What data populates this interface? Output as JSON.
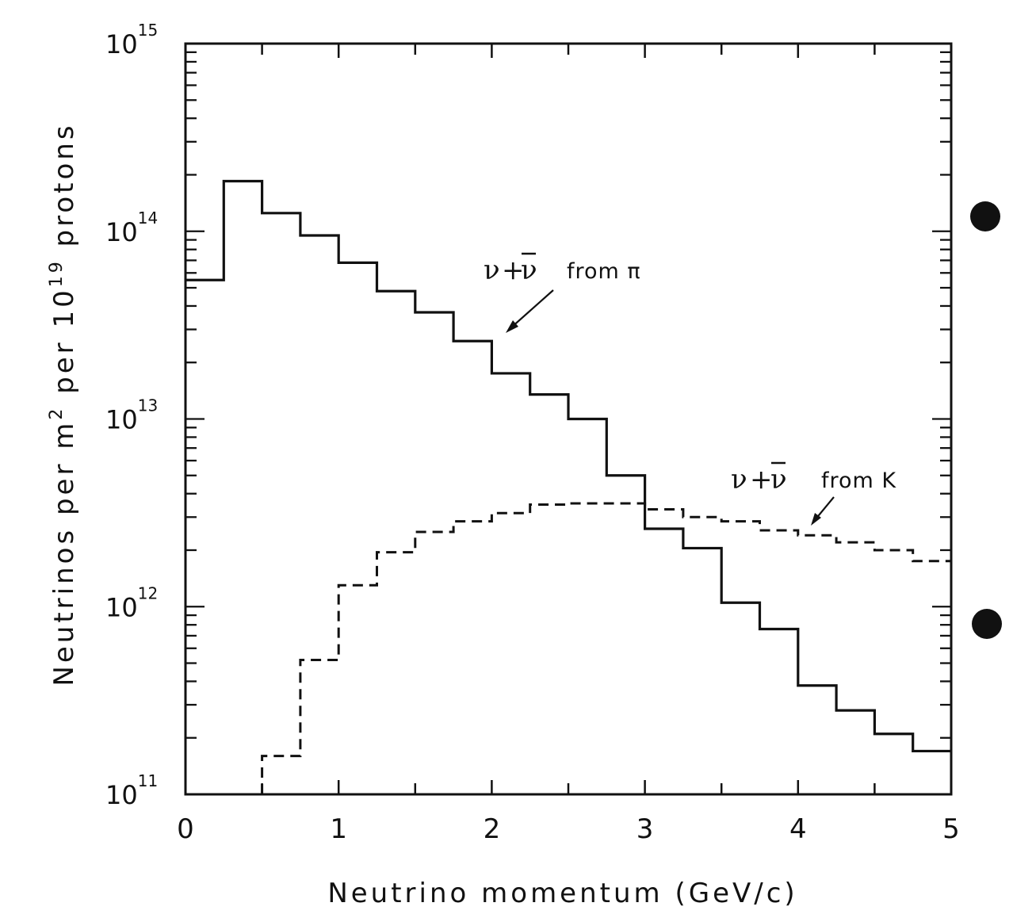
{
  "chart_data": {
    "type": "line",
    "step": true,
    "xlabel": "Neutrino momentum (GeV/c)",
    "ylabel": {
      "prefix": "Neutrinos per m",
      "sup1": "2",
      "middle": " per 10",
      "sup2": "19",
      "suffix": " protons"
    },
    "xlim": [
      0,
      5
    ],
    "ylim": [
      100000000000.0,
      1000000000000000.0
    ],
    "yscale": "log",
    "xticks": [
      {
        "v": 0,
        "label": "0"
      },
      {
        "v": 1,
        "label": "1"
      },
      {
        "v": 2,
        "label": "2"
      },
      {
        "v": 3,
        "label": "3"
      },
      {
        "v": 4,
        "label": "4"
      },
      {
        "v": 5,
        "label": "5"
      }
    ],
    "yticks": [
      {
        "exp": 11,
        "base": "10",
        "sup": "11"
      },
      {
        "exp": 12,
        "base": "10",
        "sup": "12"
      },
      {
        "exp": 13,
        "base": "10",
        "sup": "13"
      },
      {
        "exp": 14,
        "base": "10",
        "sup": "14"
      },
      {
        "exp": 15,
        "base": "10",
        "sup": "15"
      }
    ],
    "bin_edges": [
      0,
      0.25,
      0.5,
      0.75,
      1.0,
      1.25,
      1.5,
      1.75,
      2.0,
      2.25,
      2.5,
      2.75,
      3.0,
      3.25,
      3.5,
      3.75,
      4.0,
      4.25,
      4.5,
      4.75,
      5.0
    ],
    "series": [
      {
        "key": "pi",
        "style": "solid",
        "values": [
          55000000000000.0,
          185000000000000.0,
          125000000000000.0,
          95000000000000.0,
          68000000000000.0,
          48000000000000.0,
          37000000000000.0,
          26000000000000.0,
          17500000000000.0,
          13500000000000.0,
          10000000000000.0,
          5000000000000.0,
          2600000000000.0,
          2050000000000.0,
          1050000000000.0,
          760000000000.0,
          380000000000.0,
          280000000000.0,
          210000000000.0,
          170000000000.0
        ]
      },
      {
        "key": "K",
        "style": "dashed",
        "values": [
          null,
          null,
          160000000000.0,
          520000000000.0,
          1300000000000.0,
          1950000000000.0,
          2500000000000.0,
          2850000000000.0,
          3150000000000.0,
          3500000000000.0,
          3550000000000.0,
          3550000000000.0,
          3300000000000.0,
          3000000000000.0,
          2850000000000.0,
          2550000000000.0,
          2400000000000.0,
          2200000000000.0,
          2000000000000.0,
          1750000000000.0
        ]
      }
    ],
    "annotations": [
      {
        "series": "pi",
        "nu": "ν",
        "plus": "+",
        "nubar": "ν",
        "text": "from π"
      },
      {
        "series": "K",
        "nu": "ν",
        "plus": "+",
        "nubar": "ν",
        "text": "from K"
      }
    ],
    "colors": {
      "line": "#111111",
      "background": "#ffffff"
    }
  }
}
